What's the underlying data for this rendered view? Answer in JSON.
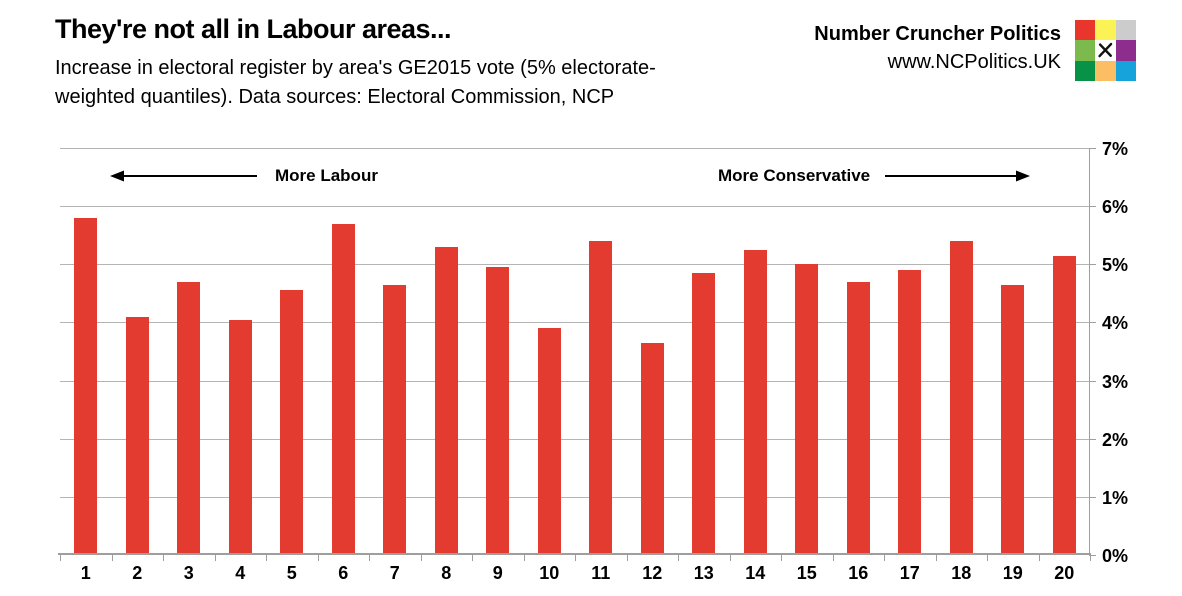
{
  "header": {
    "title": "They're not all in Labour areas...",
    "subtitle_line1": "Increase in electoral register by area's GE2015 vote (5% electorate-",
    "subtitle_line2": "weighted quantiles). Data sources: Electoral Commission, NCP"
  },
  "brand": {
    "name": "Number Cruncher Politics",
    "website": "www.NCPolitics.UK",
    "logo_colors": [
      "#E8362C",
      "#FBF255",
      "#CCCCCC",
      "#7CBA4D",
      "#FFFFFF",
      "#8D2D8E",
      "#079247",
      "#FBBE62",
      "#16A3DC"
    ],
    "logo_mark": "ballot-x"
  },
  "chart_data": {
    "type": "bar",
    "title": "They're not all in Labour areas...",
    "subtitle": "Increase in electoral register by area's GE2015 vote (5% electorate-weighted quantiles). Data sources: Electoral Commission, NCP",
    "categories": [
      "1",
      "2",
      "3",
      "4",
      "5",
      "6",
      "7",
      "8",
      "9",
      "10",
      "11",
      "12",
      "13",
      "14",
      "15",
      "16",
      "17",
      "18",
      "19",
      "20"
    ],
    "values": [
      5.8,
      4.1,
      4.7,
      4.05,
      4.55,
      5.7,
      4.65,
      5.3,
      4.95,
      3.9,
      5.4,
      3.65,
      4.85,
      5.25,
      5.0,
      4.7,
      4.9,
      5.4,
      4.65,
      5.15
    ],
    "unit": "%",
    "xlabel": "",
    "ylabel": "",
    "ylim": [
      0,
      7
    ],
    "ytick_step": 1,
    "yticks": [
      "0%",
      "1%",
      "2%",
      "3%",
      "4%",
      "5%",
      "6%",
      "7%"
    ],
    "y_axis_side": "right",
    "grid": true,
    "legend": false,
    "annotations": {
      "left": {
        "label": "More Labour",
        "arrow": "left"
      },
      "right": {
        "label": "More Conservative",
        "arrow": "right"
      }
    },
    "bar_color": "#E33B30",
    "gridline_color": "#B4B4B4",
    "axis_color": "#9E9E9E",
    "text_color": "#000000"
  }
}
